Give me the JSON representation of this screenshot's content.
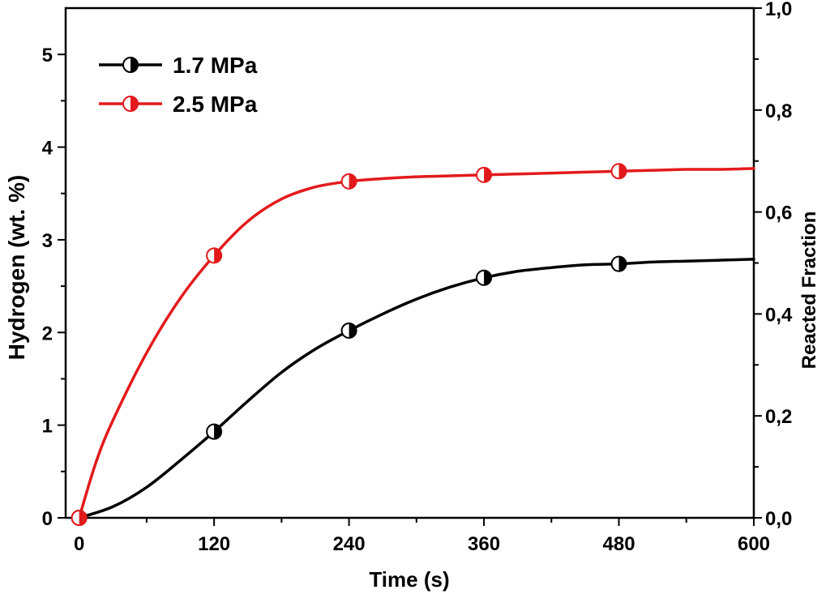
{
  "chart_data": {
    "type": "line",
    "title": "",
    "xlabel": "Time (s)",
    "ylabel": "Hydrogen (wt. %)",
    "ylabel_right": "Reacted Fraction",
    "xlim": [
      -12,
      600
    ],
    "ylim": [
      0,
      5.5
    ],
    "ylim_right": [
      0,
      1.0
    ],
    "x_ticks": [
      0,
      120,
      240,
      360,
      480,
      600
    ],
    "x_tick_labels": [
      "0",
      "120",
      "240",
      "360",
      "480",
      "600"
    ],
    "y_ticks": [
      0,
      1,
      2,
      3,
      4,
      5
    ],
    "y_tick_labels": [
      "0",
      "1",
      "2",
      "3",
      "4",
      "5"
    ],
    "y_right_ticks": [
      0,
      0.2,
      0.4,
      0.6,
      0.8,
      1.0
    ],
    "y_right_tick_labels": [
      "0,0",
      "0,2",
      "0,4",
      "0,6",
      "0,8",
      "1,0"
    ],
    "grid": false,
    "legend_position": "top-left",
    "series": [
      {
        "name": "1.7 MPa",
        "color": "#000000",
        "marker": "half-filled-circle",
        "markers": {
          "x": [
            0,
            120,
            240,
            360,
            480
          ],
          "y": [
            0.0,
            0.93,
            2.02,
            2.59,
            2.74
          ]
        },
        "curve": {
          "x": [
            0,
            30,
            60,
            90,
            120,
            150,
            180,
            210,
            240,
            270,
            300,
            330,
            360,
            390,
            420,
            450,
            480,
            510,
            540,
            570,
            600
          ],
          "y": [
            0.0,
            0.12,
            0.33,
            0.62,
            0.93,
            1.26,
            1.57,
            1.82,
            2.02,
            2.2,
            2.36,
            2.49,
            2.59,
            2.66,
            2.7,
            2.73,
            2.74,
            2.76,
            2.77,
            2.78,
            2.79
          ]
        }
      },
      {
        "name": "2.5 MPa",
        "color": "#e31a1c",
        "marker": "half-filled-circle",
        "markers": {
          "x": [
            0,
            120,
            240,
            360,
            480
          ],
          "y": [
            0.0,
            2.83,
            3.63,
            3.7,
            3.74
          ]
        },
        "curve": {
          "x": [
            0,
            15,
            30,
            60,
            90,
            120,
            150,
            180,
            210,
            240,
            270,
            300,
            330,
            360,
            390,
            420,
            450,
            480,
            510,
            540,
            570,
            600
          ],
          "y": [
            0.0,
            0.6,
            1.05,
            1.78,
            2.37,
            2.83,
            3.2,
            3.44,
            3.57,
            3.63,
            3.66,
            3.68,
            3.69,
            3.7,
            3.71,
            3.72,
            3.73,
            3.74,
            3.75,
            3.76,
            3.76,
            3.77
          ]
        }
      }
    ]
  }
}
